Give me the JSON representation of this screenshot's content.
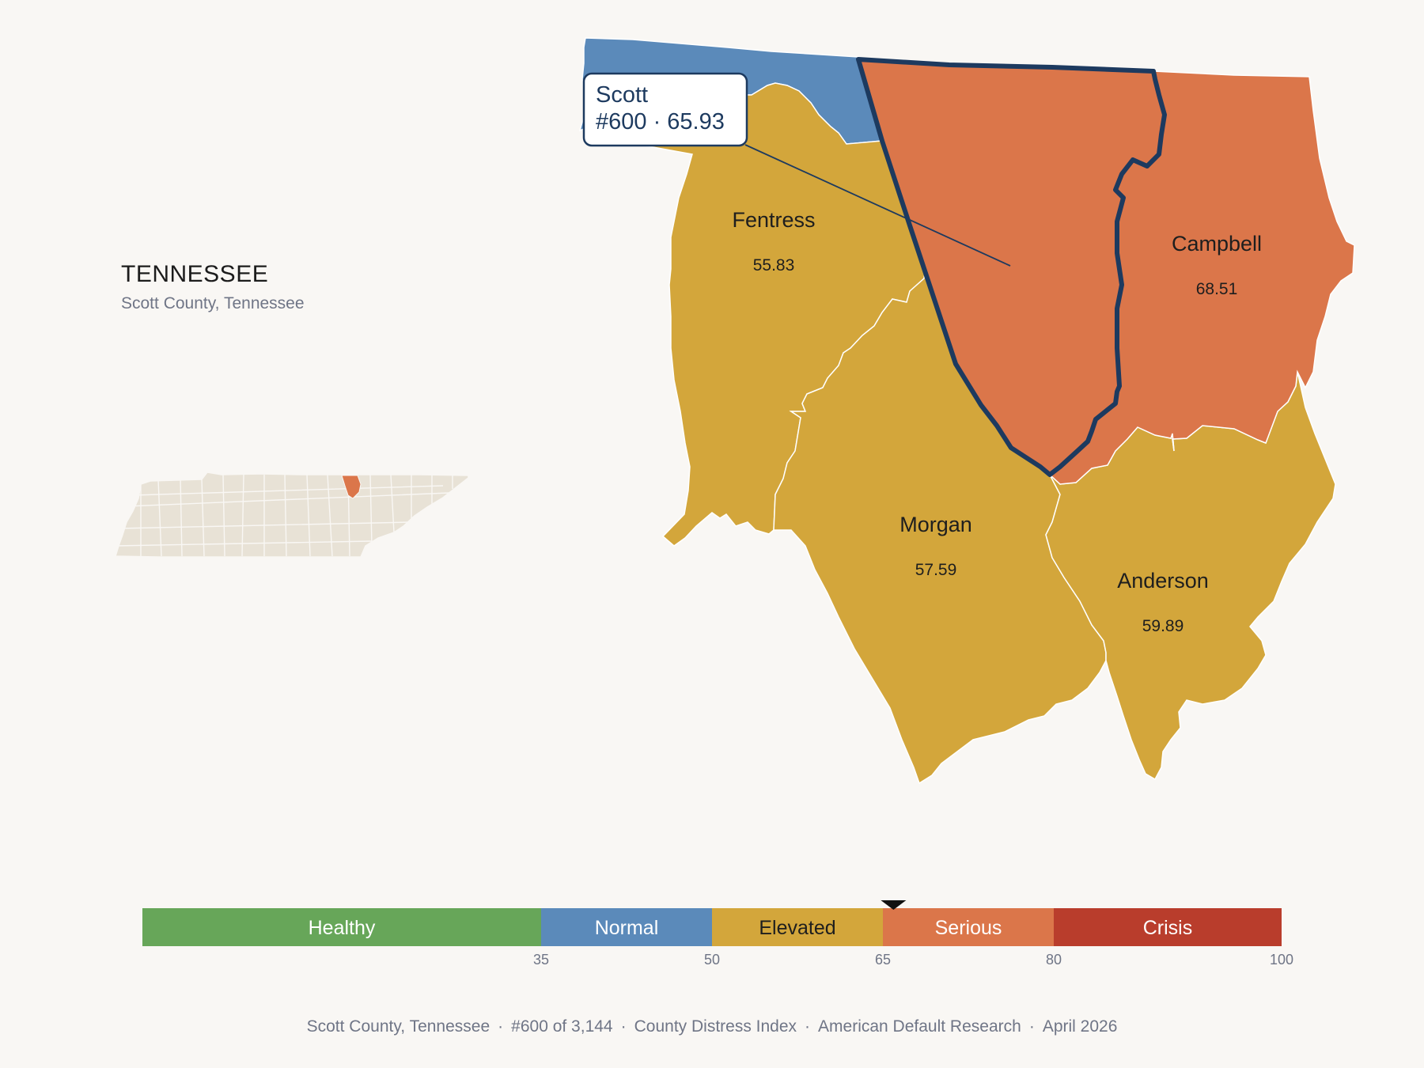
{
  "header": {
    "state": "TENNESSEE",
    "subtitle": "Scott County, Tennessee"
  },
  "tooltip": {
    "name": "Scott",
    "detail": "#600 · 65.93"
  },
  "counties": [
    {
      "name": "Scott",
      "score": 65.93,
      "band": "Serious",
      "color": "#db764a",
      "selected": true
    },
    {
      "name": "Fentress",
      "score": "55.83",
      "band": "Elevated",
      "color": "#d3a63b"
    },
    {
      "name": "Campbell",
      "score": "68.51",
      "band": "Serious",
      "color": "#db764a"
    },
    {
      "name": "Morgan",
      "score": "57.59",
      "band": "Elevated",
      "color": "#d3a63b"
    },
    {
      "name": "Anderson",
      "score": "59.89",
      "band": "Elevated",
      "color": "#d3a63b"
    },
    {
      "name": "",
      "band": "Normal",
      "color": "#5b8aba"
    }
  ],
  "legend": {
    "bands": [
      {
        "label": "Healthy",
        "from": 0,
        "to": 35,
        "color": "#67a659",
        "text_color": "#ffffff"
      },
      {
        "label": "Normal",
        "from": 35,
        "to": 50,
        "color": "#5b8aba",
        "text_color": "#ffffff"
      },
      {
        "label": "Elevated",
        "from": 50,
        "to": 65,
        "color": "#d3a63b",
        "text_color": "#1e1e1e"
      },
      {
        "label": "Serious",
        "from": 65,
        "to": 80,
        "color": "#db764a",
        "text_color": "#ffffff"
      },
      {
        "label": "Crisis",
        "from": 80,
        "to": 100,
        "color": "#b93d2c",
        "text_color": "#ffffff"
      }
    ],
    "ticks": [
      "35",
      "50",
      "65",
      "80",
      "100"
    ],
    "marker_value": 65.93,
    "min": 0,
    "max": 100
  },
  "footer": {
    "parts": [
      "Scott County, Tennessee",
      "#600 of 3,144",
      "County Distress Index",
      "American Default Research",
      "April 2026"
    ],
    "separator": "·"
  },
  "colors": {
    "background": "#f9f7f4",
    "selected_outline": "#1d3a5f",
    "inset_fill": "#e8e2d6",
    "inset_highlight": "#db764a"
  }
}
